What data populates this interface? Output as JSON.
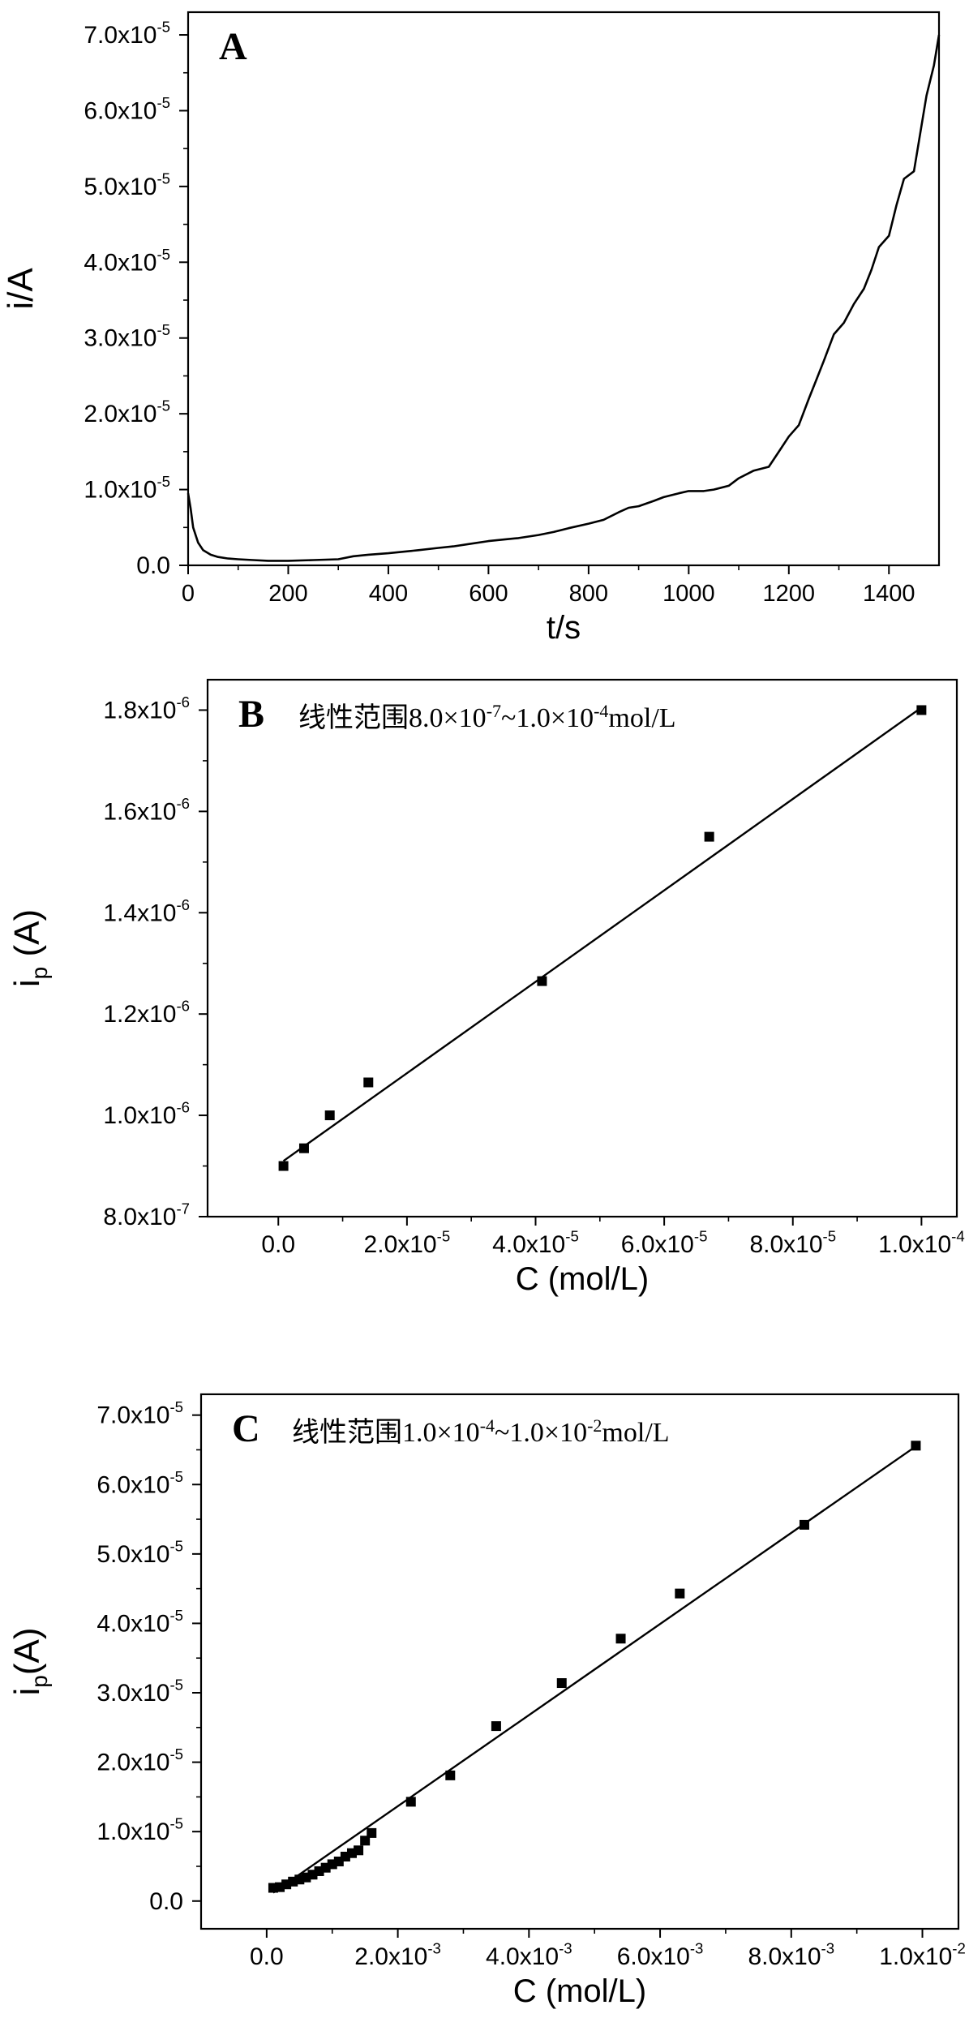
{
  "chart_data": [
    {
      "type": "line",
      "panel_label": "A",
      "title": "",
      "xlabel": "t/s",
      "ylabel": "i/A",
      "xlim": [
        0,
        1500
      ],
      "ylim": [
        0,
        7.3e-05
      ],
      "x_ticks": [
        "0",
        "200",
        "400",
        "600",
        "800",
        "1000",
        "1200",
        "1400"
      ],
      "y_ticks": [
        {
          "mant": "0.0",
          "exp": ""
        },
        {
          "mant": "1.0x10",
          "exp": "-5"
        },
        {
          "mant": "2.0x10",
          "exp": "-5"
        },
        {
          "mant": "3.0x10",
          "exp": "-5"
        },
        {
          "mant": "4.0x10",
          "exp": "-5"
        },
        {
          "mant": "5.0x10",
          "exp": "-5"
        },
        {
          "mant": "6.0x10",
          "exp": "-5"
        },
        {
          "mant": "7.0x10",
          "exp": "-5"
        }
      ],
      "series": [
        {
          "x": [
            0,
            5,
            10,
            20,
            30,
            45,
            60,
            80,
            100,
            130,
            160,
            200,
            250,
            300,
            330,
            360,
            400,
            430,
            460,
            500,
            530,
            560,
            600,
            630,
            660,
            700,
            730,
            760,
            800,
            830,
            860,
            880,
            900,
            930,
            950,
            980,
            1000,
            1030,
            1050,
            1080,
            1100,
            1130,
            1160,
            1180,
            1200,
            1220,
            1240,
            1255,
            1270,
            1290,
            1310,
            1330,
            1350,
            1365,
            1380,
            1400,
            1415,
            1430,
            1450,
            1460,
            1475,
            1490,
            1500
          ],
          "y": [
            9.5e-06,
            7.5e-06,
            5e-06,
            3e-06,
            2e-06,
            1.4e-06,
            1.1e-06,
            9e-07,
            8e-07,
            7e-07,
            6e-07,
            6e-07,
            7e-07,
            8e-07,
            1.2e-06,
            1.4e-06,
            1.6e-06,
            1.8e-06,
            2e-06,
            2.3e-06,
            2.5e-06,
            2.8e-06,
            3.2e-06,
            3.4e-06,
            3.6e-06,
            4e-06,
            4.4e-06,
            4.9e-06,
            5.5e-06,
            6e-06,
            7e-06,
            7.6e-06,
            7.8e-06,
            8.5e-06,
            9e-06,
            9.5e-06,
            9.8e-06,
            9.8e-06,
            1e-05,
            1.05e-05,
            1.15e-05,
            1.25e-05,
            1.3e-05,
            1.5e-05,
            1.7e-05,
            1.85e-05,
            2.2e-05,
            2.45e-05,
            2.7e-05,
            3.05e-05,
            3.2e-05,
            3.45e-05,
            3.65e-05,
            3.9e-05,
            4.2e-05,
            4.35e-05,
            4.75e-05,
            5.1e-05,
            5.2e-05,
            5.6e-05,
            6.2e-05,
            6.6e-05,
            7e-05
          ]
        }
      ]
    },
    {
      "type": "scatter",
      "panel_label": "B",
      "annotation": {
        "prefix": "线性范围8.0×10",
        "e1": "-7",
        "mid": "~1.0×10",
        "e2": "-4",
        "suffix": "mol/L"
      },
      "xlabel": "C (mol/L)",
      "ylabel": "i",
      "ylabel_sub": "p",
      "ylabel_tail": " (A)",
      "xlim": [
        -1.1e-05,
        0.0001055
      ],
      "ylim": [
        8e-07,
        1.86e-06
      ],
      "x_ticks": [
        {
          "mant": "0.0",
          "exp": ""
        },
        {
          "mant": "2.0x10",
          "exp": "-5"
        },
        {
          "mant": "4.0x10",
          "exp": "-5"
        },
        {
          "mant": "6.0x10",
          "exp": "-5"
        },
        {
          "mant": "8.0x10",
          "exp": "-5"
        },
        {
          "mant": "1.0x10",
          "exp": "-4"
        }
      ],
      "y_ticks": [
        {
          "mant": "8.0x10",
          "exp": "-7"
        },
        {
          "mant": "1.0x10",
          "exp": "-6"
        },
        {
          "mant": "1.2x10",
          "exp": "-6"
        },
        {
          "mant": "1.4x10",
          "exp": "-6"
        },
        {
          "mant": "1.6x10",
          "exp": "-6"
        },
        {
          "mant": "1.8x10",
          "exp": "-6"
        }
      ],
      "points": {
        "x": [
          8e-07,
          4e-06,
          8e-06,
          1.4e-05,
          4.1e-05,
          6.7e-05,
          0.0001
        ],
        "y": [
          9e-07,
          9.35e-07,
          1e-06,
          1.065e-06,
          1.265e-06,
          1.55e-06,
          1.8e-06
        ]
      },
      "fit": {
        "x": [
          8e-07,
          0.0001
        ],
        "y": [
          9.1e-07,
          1.805e-06
        ]
      }
    },
    {
      "type": "scatter",
      "panel_label": "C",
      "annotation": {
        "prefix": "线性范围1.0×10",
        "e1": "-4",
        "mid": "~1.0×10",
        "e2": "-2",
        "suffix": "mol/L"
      },
      "xlabel": "C (mol/L)",
      "ylabel": "i",
      "ylabel_sub": "p",
      "ylabel_tail": "(A)",
      "xlim": [
        -0.001,
        0.01055
      ],
      "ylim": [
        -4e-06,
        7.3e-05
      ],
      "x_ticks": [
        {
          "mant": "0.0",
          "exp": ""
        },
        {
          "mant": "2.0x10",
          "exp": "-3"
        },
        {
          "mant": "4.0x10",
          "exp": "-3"
        },
        {
          "mant": "6.0x10",
          "exp": "-3"
        },
        {
          "mant": "8.0x10",
          "exp": "-3"
        },
        {
          "mant": "1.0x10",
          "exp": "-2"
        }
      ],
      "y_ticks": [
        {
          "mant": "0.0",
          "exp": ""
        },
        {
          "mant": "1.0x10",
          "exp": "-5"
        },
        {
          "mant": "2.0x10",
          "exp": "-5"
        },
        {
          "mant": "3.0x10",
          "exp": "-5"
        },
        {
          "mant": "4.0x10",
          "exp": "-5"
        },
        {
          "mant": "5.0x10",
          "exp": "-5"
        },
        {
          "mant": "6.0x10",
          "exp": "-5"
        },
        {
          "mant": "7.0x10",
          "exp": "-5"
        }
      ],
      "points": {
        "x": [
          0.0001,
          0.0002,
          0.0003,
          0.0004,
          0.0005,
          0.0006,
          0.0007,
          0.0008,
          0.0009,
          0.001,
          0.0011,
          0.0012,
          0.0013,
          0.0014,
          0.0015,
          0.0016,
          0.0022,
          0.0028,
          0.0035,
          0.0045,
          0.0054,
          0.0063,
          0.0082,
          0.0099
        ],
        "y": [
          1.9e-06,
          2e-06,
          2.4e-06,
          2.8e-06,
          3.1e-06,
          3.4e-06,
          3.8e-06,
          4.3e-06,
          4.8e-06,
          5.3e-06,
          5.7e-06,
          6.4e-06,
          6.9e-06,
          7.3e-06,
          8.7e-06,
          9.8e-06,
          1.43e-05,
          1.81e-05,
          2.52e-05,
          3.14e-05,
          3.78e-05,
          4.43e-05,
          5.42e-05,
          6.56e-05
        ]
      },
      "fit": {
        "x": [
          0.0001,
          0.0099
        ],
        "y": [
          1.2e-06,
          6.55e-05
        ]
      }
    }
  ]
}
